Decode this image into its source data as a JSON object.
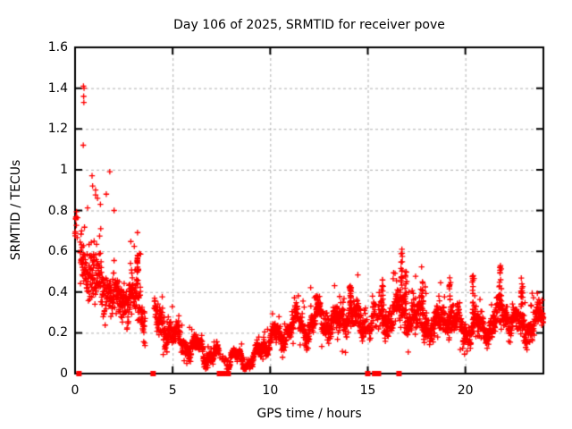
{
  "title": "Day 106 of 2025, SRMTID for receiver pove",
  "colors": {
    "marker": "#ff0000",
    "grid": "#b0b0b0",
    "axis": "#000000",
    "background": "#ffffff",
    "text": "#000000"
  },
  "chart_data": {
    "type": "scatter",
    "title": "Day 106 of 2025, SRMTID for receiver pove",
    "xlabel": "GPS time / hours",
    "ylabel": "SRMTID / TECUs",
    "xlim": [
      0,
      24
    ],
    "ylim": [
      0,
      1.6
    ],
    "xticks": [
      0,
      5,
      10,
      15,
      20
    ],
    "xtick_labels": [
      "0",
      "5",
      "10",
      "15",
      "20"
    ],
    "yticks": [
      0,
      0.2,
      0.4,
      0.6,
      0.8,
      1.0,
      1.2,
      1.4,
      1.6
    ],
    "ytick_labels": [
      "0",
      "0.2",
      "0.4",
      "0.6",
      "0.8",
      "1",
      "1.2",
      "1.4",
      "1.6"
    ],
    "grid": true,
    "legend": false,
    "series": [
      {
        "name": "SRMTID",
        "marker": "plus",
        "color": "#ff0000"
      }
    ],
    "sample_rate_per_hour": 120,
    "seed": 1234567,
    "band_profile": [
      [
        0.0,
        0.68,
        0.12
      ],
      [
        0.25,
        0.62,
        0.15
      ],
      [
        0.5,
        0.55,
        0.16
      ],
      [
        0.8,
        0.5,
        0.16
      ],
      [
        1.2,
        0.45,
        0.15
      ],
      [
        1.7,
        0.4,
        0.14
      ],
      [
        2.1,
        0.33,
        0.12
      ],
      [
        2.6,
        0.36,
        0.11
      ],
      [
        3.1,
        0.38,
        0.12
      ],
      [
        3.5,
        0.3,
        0.12
      ],
      [
        4.1,
        0.3,
        0.1
      ],
      [
        4.5,
        0.24,
        0.09
      ],
      [
        5.0,
        0.17,
        0.06
      ],
      [
        5.5,
        0.14,
        0.05
      ],
      [
        6.0,
        0.12,
        0.05
      ],
      [
        6.3,
        0.15,
        0.05
      ],
      [
        6.8,
        0.1,
        0.04
      ],
      [
        7.3,
        0.08,
        0.03
      ],
      [
        7.8,
        0.06,
        0.025
      ],
      [
        8.3,
        0.055,
        0.02
      ],
      [
        8.8,
        0.065,
        0.025
      ],
      [
        9.3,
        0.1,
        0.035
      ],
      [
        9.8,
        0.16,
        0.045
      ],
      [
        10.2,
        0.19,
        0.05
      ],
      [
        10.5,
        0.13,
        0.05
      ],
      [
        11.0,
        0.22,
        0.06
      ],
      [
        11.4,
        0.26,
        0.06
      ],
      [
        11.8,
        0.22,
        0.06
      ],
      [
        12.4,
        0.29,
        0.07
      ],
      [
        12.9,
        0.25,
        0.07
      ],
      [
        13.5,
        0.22,
        0.08
      ],
      [
        14.1,
        0.3,
        0.09
      ],
      [
        14.6,
        0.25,
        0.08
      ],
      [
        15.1,
        0.27,
        0.09
      ],
      [
        15.7,
        0.28,
        0.11
      ],
      [
        16.2,
        0.26,
        0.09
      ],
      [
        16.75,
        0.33,
        0.12
      ],
      [
        17.2,
        0.28,
        0.09
      ],
      [
        17.8,
        0.29,
        0.1
      ],
      [
        18.4,
        0.2,
        0.07
      ],
      [
        19.0,
        0.27,
        0.09
      ],
      [
        19.6,
        0.25,
        0.08
      ],
      [
        20.1,
        0.21,
        0.07
      ],
      [
        20.5,
        0.26,
        0.09
      ],
      [
        21.0,
        0.21,
        0.07
      ],
      [
        21.5,
        0.24,
        0.08
      ],
      [
        21.85,
        0.29,
        0.1
      ],
      [
        22.3,
        0.27,
        0.07
      ],
      [
        22.85,
        0.26,
        0.08
      ],
      [
        23.3,
        0.24,
        0.07
      ],
      [
        23.9,
        0.27,
        0.06
      ]
    ],
    "density_gaps": [
      [
        0.08,
        0.25,
        0.15
      ],
      [
        3.6,
        4.05,
        0.0
      ],
      [
        7.35,
        7.85,
        0.35
      ],
      [
        14.9,
        15.65,
        0.45
      ]
    ],
    "spikes": [
      [
        3.2,
        0.58
      ],
      [
        12.4,
        0.38
      ],
      [
        14.1,
        0.43
      ],
      [
        15.75,
        0.46
      ],
      [
        16.75,
        0.61
      ],
      [
        16.95,
        0.5
      ],
      [
        17.8,
        0.45
      ],
      [
        19.2,
        0.47
      ],
      [
        20.4,
        0.48
      ],
      [
        21.8,
        0.53
      ],
      [
        22.9,
        0.44
      ]
    ],
    "outliers": [
      [
        0.43,
        1.41
      ],
      [
        0.46,
        1.4
      ],
      [
        0.44,
        1.36
      ],
      [
        0.45,
        1.33
      ],
      [
        0.42,
        1.12
      ],
      [
        0.87,
        0.97
      ],
      [
        1.78,
        0.99
      ],
      [
        0.9,
        0.92
      ],
      [
        1.05,
        0.9
      ],
      [
        1.15,
        0.86
      ],
      [
        1.3,
        0.83
      ],
      [
        1.6,
        0.88
      ],
      [
        2.0,
        0.8
      ]
    ],
    "zero_markers": [
      0.2,
      4.0,
      7.4,
      7.5,
      7.6,
      7.85,
      15.0,
      15.35,
      15.45,
      15.55,
      16.6
    ]
  }
}
